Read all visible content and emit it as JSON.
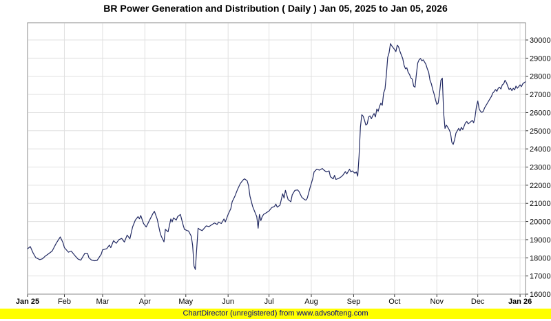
{
  "title": "BR Power Generation and Distribution ( Daily ) Jan 05, 2025 to Jan 05, 2026",
  "footer": {
    "text": "ChartDirector (unregistered) from www.advsofteng.com",
    "bg_color": "#ffff00",
    "text_color": "#000080"
  },
  "colors": {
    "line": "#222a63",
    "grid": "#e0e0e0",
    "plot_border": "#8a8a8a",
    "tick": "#333333",
    "label": "#000000",
    "plot_bg": "#ffffff"
  },
  "chart_data": {
    "type": "line",
    "title": "BR Power Generation and Distribution ( Daily ) Jan 05, 2025 to Jan 05, 2026",
    "grid": true,
    "legend_position": "none",
    "x_axis": {
      "kind": "date-daily",
      "max_day": 365,
      "end_tick_day": 365,
      "months": [
        {
          "label": "Jan 25",
          "day": 0,
          "bold": true
        },
        {
          "label": "Feb",
          "day": 27,
          "bold": false
        },
        {
          "label": "Mar",
          "day": 55,
          "bold": false
        },
        {
          "label": "Apr",
          "day": 86,
          "bold": false
        },
        {
          "label": "May",
          "day": 116,
          "bold": false
        },
        {
          "label": "Jun",
          "day": 147,
          "bold": false
        },
        {
          "label": "Jul",
          "day": 177,
          "bold": false
        },
        {
          "label": "Aug",
          "day": 208,
          "bold": false
        },
        {
          "label": "Sep",
          "day": 239,
          "bold": false
        },
        {
          "label": "Oct",
          "day": 269,
          "bold": false
        },
        {
          "label": "Nov",
          "day": 300,
          "bold": false
        },
        {
          "label": "Dec",
          "day": 330,
          "bold": false
        },
        {
          "label": "Jan 26",
          "day": 361,
          "bold": true
        }
      ]
    },
    "y_axis": {
      "side": "right",
      "min": 16000,
      "axis_top": 30950,
      "tick_start": 16000,
      "tick_end": 30000,
      "tick_step": 1000
    },
    "series": [
      {
        "name": "BR Power Generation and Distribution",
        "color": "#222a63",
        "points": [
          [
            0,
            18500
          ],
          [
            2,
            18620
          ],
          [
            4,
            18280
          ],
          [
            6,
            18010
          ],
          [
            9,
            17900
          ],
          [
            11,
            17950
          ],
          [
            13,
            18100
          ],
          [
            15,
            18200
          ],
          [
            18,
            18370
          ],
          [
            21,
            18800
          ],
          [
            24,
            19150
          ],
          [
            26,
            18830
          ],
          [
            27,
            18560
          ],
          [
            30,
            18310
          ],
          [
            32,
            18370
          ],
          [
            35,
            18100
          ],
          [
            37,
            17930
          ],
          [
            39,
            17870
          ],
          [
            42,
            18250
          ],
          [
            44,
            18240
          ],
          [
            45,
            18000
          ],
          [
            47,
            17870
          ],
          [
            49,
            17840
          ],
          [
            51,
            17860
          ],
          [
            54,
            18200
          ],
          [
            55,
            18440
          ],
          [
            58,
            18500
          ],
          [
            60,
            18700
          ],
          [
            61,
            18560
          ],
          [
            63,
            18940
          ],
          [
            65,
            18800
          ],
          [
            67,
            19000
          ],
          [
            69,
            19070
          ],
          [
            71,
            18870
          ],
          [
            73,
            19250
          ],
          [
            75,
            19050
          ],
          [
            77,
            19700
          ],
          [
            79,
            20080
          ],
          [
            81,
            20270
          ],
          [
            82,
            20150
          ],
          [
            83,
            20330
          ],
          [
            85,
            19890
          ],
          [
            87,
            19700
          ],
          [
            89,
            20010
          ],
          [
            92,
            20450
          ],
          [
            93,
            20560
          ],
          [
            95,
            20140
          ],
          [
            97,
            19440
          ],
          [
            98,
            19190
          ],
          [
            100,
            18880
          ],
          [
            101,
            19570
          ],
          [
            103,
            19430
          ],
          [
            105,
            20140
          ],
          [
            106,
            19980
          ],
          [
            107,
            20200
          ],
          [
            109,
            20080
          ],
          [
            110,
            20270
          ],
          [
            112,
            20390
          ],
          [
            114,
            19820
          ],
          [
            115,
            19570
          ],
          [
            117,
            19500
          ],
          [
            118,
            19480
          ],
          [
            120,
            19190
          ],
          [
            121,
            18680
          ],
          [
            122,
            17550
          ],
          [
            123,
            17360
          ],
          [
            125,
            19630
          ],
          [
            126,
            19570
          ],
          [
            128,
            19500
          ],
          [
            131,
            19760
          ],
          [
            133,
            19720
          ],
          [
            135,
            19820
          ],
          [
            137,
            19920
          ],
          [
            139,
            19840
          ],
          [
            140,
            19970
          ],
          [
            142,
            19890
          ],
          [
            144,
            20140
          ],
          [
            145,
            19980
          ],
          [
            147,
            20390
          ],
          [
            149,
            20710
          ],
          [
            150,
            21090
          ],
          [
            152,
            21400
          ],
          [
            154,
            21780
          ],
          [
            156,
            22100
          ],
          [
            158,
            22290
          ],
          [
            159,
            22350
          ],
          [
            161,
            22240
          ],
          [
            162,
            21970
          ],
          [
            163,
            21400
          ],
          [
            165,
            20830
          ],
          [
            167,
            20450
          ],
          [
            168,
            20270
          ],
          [
            169,
            19630
          ],
          [
            170,
            20390
          ],
          [
            171,
            20050
          ],
          [
            172,
            20270
          ],
          [
            173,
            20390
          ],
          [
            175,
            20480
          ],
          [
            177,
            20580
          ],
          [
            178,
            20680
          ],
          [
            179,
            20770
          ],
          [
            181,
            20830
          ],
          [
            182,
            20960
          ],
          [
            183,
            20790
          ],
          [
            185,
            20900
          ],
          [
            187,
            21530
          ],
          [
            188,
            21290
          ],
          [
            189,
            21720
          ],
          [
            191,
            21210
          ],
          [
            193,
            21090
          ],
          [
            194,
            21470
          ],
          [
            196,
            21720
          ],
          [
            198,
            21740
          ],
          [
            199,
            21650
          ],
          [
            201,
            21340
          ],
          [
            203,
            21210
          ],
          [
            204,
            21180
          ],
          [
            205,
            21280
          ],
          [
            207,
            21840
          ],
          [
            209,
            22350
          ],
          [
            210,
            22730
          ],
          [
            212,
            22880
          ],
          [
            214,
            22830
          ],
          [
            216,
            22920
          ],
          [
            217,
            22850
          ],
          [
            219,
            22730
          ],
          [
            221,
            22790
          ],
          [
            222,
            22470
          ],
          [
            224,
            22350
          ],
          [
            225,
            22540
          ],
          [
            226,
            22320
          ],
          [
            228,
            22370
          ],
          [
            230,
            22470
          ],
          [
            231,
            22540
          ],
          [
            233,
            22750
          ],
          [
            234,
            22620
          ],
          [
            236,
            22880
          ],
          [
            237,
            22730
          ],
          [
            238,
            22790
          ],
          [
            240,
            22660
          ],
          [
            241,
            22730
          ],
          [
            242,
            22500
          ],
          [
            243,
            23600
          ],
          [
            244,
            25200
          ],
          [
            245,
            25880
          ],
          [
            246,
            25800
          ],
          [
            247,
            25570
          ],
          [
            248,
            25310
          ],
          [
            249,
            25380
          ],
          [
            250,
            25760
          ],
          [
            251,
            25820
          ],
          [
            252,
            25660
          ],
          [
            253,
            25820
          ],
          [
            254,
            25950
          ],
          [
            255,
            25760
          ],
          [
            256,
            26200
          ],
          [
            257,
            26070
          ],
          [
            258,
            26350
          ],
          [
            259,
            26520
          ],
          [
            260,
            26400
          ],
          [
            261,
            27080
          ],
          [
            262,
            27300
          ],
          [
            263,
            28100
          ],
          [
            264,
            29040
          ],
          [
            265,
            29290
          ],
          [
            266,
            29800
          ],
          [
            267,
            29670
          ],
          [
            269,
            29480
          ],
          [
            270,
            29360
          ],
          [
            271,
            29720
          ],
          [
            272,
            29610
          ],
          [
            273,
            29360
          ],
          [
            274,
            29170
          ],
          [
            275,
            28980
          ],
          [
            276,
            28600
          ],
          [
            277,
            28410
          ],
          [
            278,
            28470
          ],
          [
            279,
            28220
          ],
          [
            280,
            28100
          ],
          [
            281,
            27910
          ],
          [
            282,
            27840
          ],
          [
            283,
            27460
          ],
          [
            284,
            27400
          ],
          [
            285,
            28100
          ],
          [
            286,
            28730
          ],
          [
            287,
            28910
          ],
          [
            288,
            28980
          ],
          [
            289,
            28850
          ],
          [
            290,
            28910
          ],
          [
            291,
            28790
          ],
          [
            292,
            28660
          ],
          [
            293,
            28410
          ],
          [
            294,
            28220
          ],
          [
            295,
            27780
          ],
          [
            296,
            27590
          ],
          [
            297,
            27270
          ],
          [
            298,
            27020
          ],
          [
            299,
            26710
          ],
          [
            300,
            26450
          ],
          [
            301,
            26520
          ],
          [
            302,
            27080
          ],
          [
            303,
            27780
          ],
          [
            304,
            27900
          ],
          [
            305,
            25950
          ],
          [
            306,
            25130
          ],
          [
            307,
            25310
          ],
          [
            308,
            25190
          ],
          [
            309,
            25060
          ],
          [
            310,
            24870
          ],
          [
            311,
            24370
          ],
          [
            312,
            24250
          ],
          [
            313,
            24500
          ],
          [
            314,
            24870
          ],
          [
            315,
            25000
          ],
          [
            316,
            25130
          ],
          [
            317,
            25000
          ],
          [
            318,
            25190
          ],
          [
            319,
            25060
          ],
          [
            321,
            25440
          ],
          [
            322,
            25510
          ],
          [
            323,
            25380
          ],
          [
            324,
            25440
          ],
          [
            325,
            25510
          ],
          [
            326,
            25570
          ],
          [
            327,
            25440
          ],
          [
            328,
            25760
          ],
          [
            329,
            26330
          ],
          [
            330,
            26640
          ],
          [
            331,
            26200
          ],
          [
            332,
            26070
          ],
          [
            333,
            26010
          ],
          [
            334,
            26070
          ],
          [
            335,
            26260
          ],
          [
            336,
            26390
          ],
          [
            337,
            26510
          ],
          [
            338,
            26640
          ],
          [
            339,
            26770
          ],
          [
            340,
            26890
          ],
          [
            341,
            27080
          ],
          [
            342,
            27150
          ],
          [
            343,
            27270
          ],
          [
            344,
            27170
          ],
          [
            345,
            27340
          ],
          [
            346,
            27400
          ],
          [
            347,
            27300
          ],
          [
            348,
            27530
          ],
          [
            349,
            27590
          ],
          [
            350,
            27780
          ],
          [
            351,
            27650
          ],
          [
            352,
            27460
          ],
          [
            353,
            27270
          ],
          [
            354,
            27340
          ],
          [
            355,
            27210
          ],
          [
            356,
            27340
          ],
          [
            357,
            27250
          ],
          [
            358,
            27460
          ],
          [
            359,
            27340
          ],
          [
            360,
            27430
          ],
          [
            361,
            27530
          ],
          [
            362,
            27430
          ],
          [
            363,
            27590
          ],
          [
            364,
            27650
          ],
          [
            365,
            27700
          ]
        ]
      }
    ]
  }
}
